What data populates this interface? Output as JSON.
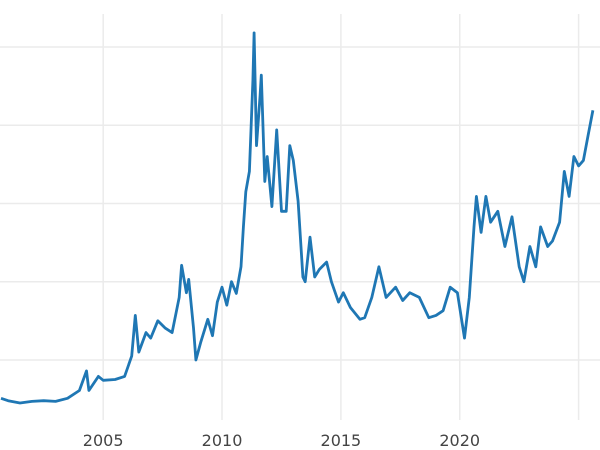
{
  "chart_data": {
    "type": "line",
    "title": "",
    "xlabel": "",
    "ylabel": "",
    "grid": true,
    "line_color": "#1f77b4",
    "grid_color": "#ebebeb",
    "xlim": [
      2000.66,
      2025.9
    ],
    "ylim": [
      2.2,
      56
    ],
    "x_ticks": [
      2005,
      2010,
      2015,
      2020,
      2025
    ],
    "x_tick_labels": [
      "2005",
      "2010",
      "2015",
      "2020",
      ""
    ],
    "y_grid_values": [
      10,
      20,
      30,
      40,
      50
    ],
    "series": [
      {
        "x": [
          2000.7,
          2001,
          2001.5,
          2002,
          2002.5,
          2003,
          2003.5,
          2004,
          2004.3,
          2004.4,
          2004.8,
          2005,
          2005.5,
          2005.9,
          2006.2,
          2006.35,
          2006.5,
          2006.8,
          2007,
          2007.3,
          2007.6,
          2007.9,
          2008.2,
          2008.3,
          2008.5,
          2008.6,
          2008.8,
          2008.9,
          2009.1,
          2009.4,
          2009.6,
          2009.8,
          2010,
          2010.2,
          2010.4,
          2010.6,
          2010.8,
          2010.9,
          2011.0,
          2011.15,
          2011.3,
          2011.35,
          2011.45,
          2011.6,
          2011.65,
          2011.8,
          2011.9,
          2012.1,
          2012.3,
          2012.5,
          2012.7,
          2012.85,
          2013.0,
          2013.2,
          2013.4,
          2013.5,
          2013.7,
          2013.9,
          2014.1,
          2014.4,
          2014.6,
          2014.9,
          2015.1,
          2015.4,
          2015.8,
          2016.0,
          2016.3,
          2016.6,
          2016.9,
          2017.3,
          2017.6,
          2017.9,
          2018.3,
          2018.7,
          2019.0,
          2019.3,
          2019.6,
          2019.9,
          2020.2,
          2020.4,
          2020.6,
          2020.7,
          2020.9,
          2021.1,
          2021.3,
          2021.6,
          2021.9,
          2022.2,
          2022.5,
          2022.7,
          2022.95,
          2023.2,
          2023.4,
          2023.7,
          2023.9,
          2024.2,
          2024.4,
          2024.6,
          2024.8,
          2025.0,
          2025.2,
          2025.4,
          2025.6
        ],
        "values": [
          5.1,
          4.8,
          4.5,
          4.7,
          4.8,
          4.7,
          5.1,
          6.1,
          8.6,
          6.1,
          7.9,
          7.4,
          7.5,
          7.9,
          10.5,
          15.7,
          11,
          13.5,
          12.8,
          15,
          14.1,
          13.5,
          18,
          22.1,
          18.6,
          20.3,
          14.1,
          10,
          12.2,
          15.2,
          13.1,
          17.4,
          19.3,
          17,
          20,
          18.5,
          21.9,
          27,
          31.5,
          34.1,
          45.7,
          51.8,
          37.4,
          43.8,
          46.4,
          32.8,
          36,
          29.6,
          39.4,
          29,
          29,
          37.4,
          35.5,
          30.3,
          20.6,
          20,
          25.7,
          20.6,
          21.6,
          22.5,
          20,
          17.4,
          18.6,
          16.7,
          15.2,
          15.4,
          18,
          21.9,
          18,
          19.3,
          17.6,
          18.6,
          18,
          15.4,
          15.7,
          16.3,
          19.3,
          18.6,
          12.8,
          18,
          27,
          30.9,
          26.3,
          30.9,
          27.6,
          29,
          24.5,
          28.3,
          21.9,
          20,
          24.5,
          21.9,
          27,
          24.5,
          25.2,
          27.6,
          34.1,
          30.9,
          36,
          34.8,
          35.5,
          38.7,
          41.9
        ]
      }
    ]
  }
}
